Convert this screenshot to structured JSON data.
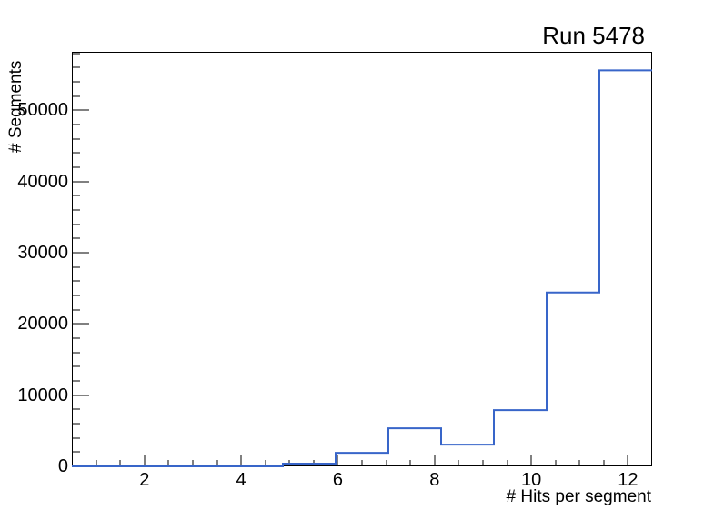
{
  "title": "Run 5478",
  "chart_data": {
    "type": "histogram-step",
    "title": "Run 5478",
    "xlabel": "# Hits per segment",
    "ylabel": "# Segments",
    "xlim": [
      0.5,
      12.5
    ],
    "ylim": [
      0,
      58200
    ],
    "n_bins": 11,
    "bin_edges": [
      0.5,
      1.591,
      2.682,
      3.773,
      4.864,
      5.955,
      7.045,
      8.136,
      9.227,
      10.318,
      11.409,
      12.5
    ],
    "bin_contents": [
      0,
      0,
      0,
      0,
      380,
      1900,
      5350,
      3050,
      7900,
      24400,
      55600
    ],
    "x_major_ticks": [
      2,
      4,
      6,
      8,
      10,
      12
    ],
    "x_major_tick_labels": [
      "2",
      "4",
      "6",
      "8",
      "10",
      "12"
    ],
    "x_minor_tick_step": 0.5,
    "y_major_ticks": [
      0,
      10000,
      20000,
      30000,
      40000,
      50000
    ],
    "y_major_tick_labels": [
      "0",
      "10000",
      "20000",
      "30000",
      "40000",
      "50000"
    ],
    "y_minor_tick_step": 2000,
    "grid": false,
    "legend": null,
    "line_color": "#3865c9",
    "axis_color": "#000000",
    "background_color": "#ffffff"
  }
}
